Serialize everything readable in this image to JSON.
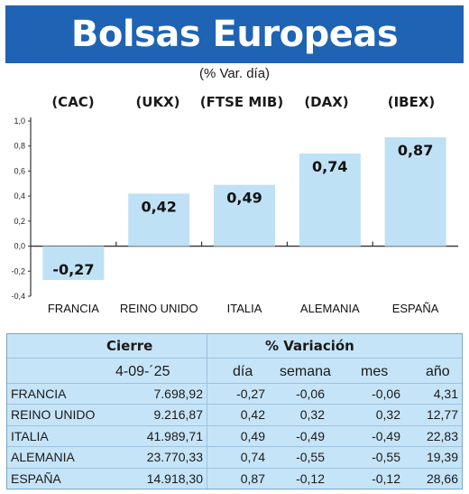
{
  "title": "Bolsas Europeas",
  "subtitle": "(% Var. día)",
  "chart_data": {
    "type": "bar",
    "index_labels": [
      "(CAC)",
      "(UKX)",
      "(FTSE MIB)",
      "(DAX)",
      "(IBEX)"
    ],
    "categories": [
      "FRANCIA",
      "REINO UNIDO",
      "ITALIA",
      "ALEMANIA",
      "ESPAÑA"
    ],
    "values": [
      -0.27,
      0.42,
      0.49,
      0.74,
      0.87
    ],
    "value_labels": [
      "-0,27",
      "0,42",
      "0,49",
      "0,74",
      "0,87"
    ],
    "ylim": [
      -0.4,
      1.0
    ],
    "yticks": [
      1.0,
      0.8,
      0.6,
      0.4,
      0.2,
      0.0,
      -0.2,
      -0.4
    ],
    "ytick_labels": [
      "1,0",
      "0,8",
      "0,6",
      "0,4",
      "0,2",
      "0,0",
      "-0,2",
      "-0,4"
    ],
    "bar_color": "#bfe1f6",
    "grid": false,
    "xlabel": "",
    "ylabel": ""
  },
  "table": {
    "header_cierre": "Cierre",
    "header_variacion": "% Variación",
    "date": "4-09-´25",
    "col_dia": "día",
    "col_semana": "semana",
    "col_mes": "mes",
    "col_ano": "año",
    "rows": [
      {
        "name": "FRANCIA",
        "cierre": "7.698,92",
        "dia": "-0,27",
        "semana": "-0,06",
        "mes": "-0,06",
        "ano": "4,31"
      },
      {
        "name": "REINO UNIDO",
        "cierre": "9.216,87",
        "dia": "0,42",
        "semana": "0,32",
        "mes": "0,32",
        "ano": "12,77"
      },
      {
        "name": "ITALIA",
        "cierre": "41.989,71",
        "dia": "0,49",
        "semana": "-0,49",
        "mes": "-0,49",
        "ano": "22,83"
      },
      {
        "name": "ALEMANIA",
        "cierre": "23.770,33",
        "dia": "0,74",
        "semana": "-0,55",
        "mes": "-0,55",
        "ano": "19,39"
      },
      {
        "name": "ESPAÑA",
        "cierre": "14.918,30",
        "dia": "0,87",
        "semana": "-0,12",
        "mes": "-0,12",
        "ano": "28,66"
      }
    ]
  }
}
